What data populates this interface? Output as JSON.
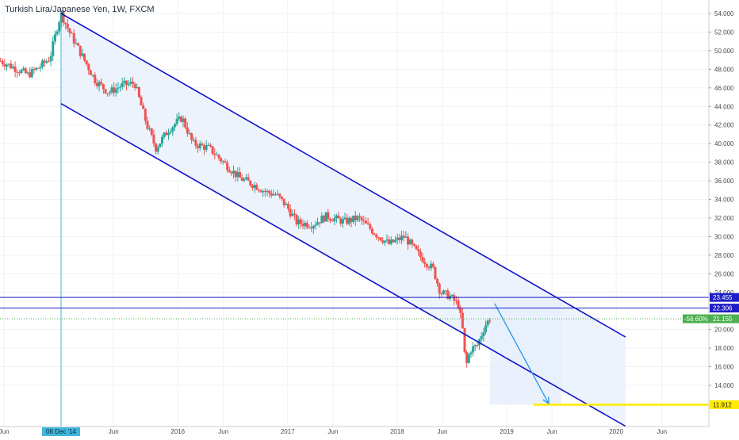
{
  "chart_data": {
    "type": "candlestick",
    "title": "Turkish Lira/Japanese Yen, 1W, FXCM",
    "x_ticks": [
      {
        "label": "Jun",
        "date": "2014-06-01"
      },
      {
        "label": "08 Dec '14",
        "date": "2014-12-08",
        "highlight": true
      },
      {
        "label": "Jun",
        "date": "2015-06-01"
      },
      {
        "label": "2016",
        "date": "2016-01-01"
      },
      {
        "label": "Jun",
        "date": "2016-06-01"
      },
      {
        "label": "2017",
        "date": "2017-01-01"
      },
      {
        "label": "Jun",
        "date": "2017-06-01"
      },
      {
        "label": "2018",
        "date": "2018-01-01"
      },
      {
        "label": "Jun",
        "date": "2018-06-01"
      },
      {
        "label": "2019",
        "date": "2019-01-01"
      },
      {
        "label": "Jun",
        "date": "2019-06-01"
      },
      {
        "label": "2020",
        "date": "2020-01-01"
      },
      {
        "label": "Jun",
        "date": "2020-06-01"
      }
    ],
    "y_ticks": [
      "54.000",
      "52.000",
      "50.000",
      "48.000",
      "46.000",
      "44.000",
      "42.000",
      "40.000",
      "38.000",
      "36.000",
      "34.000",
      "32.000",
      "30.000",
      "28.000",
      "26.000",
      "24.000",
      "20.000",
      "18.000",
      "16.000",
      "14.000"
    ],
    "ylim": [
      11.0,
      55.4
    ],
    "price_path": [
      [
        "2014-05-20",
        48.9
      ],
      [
        "2014-07-15",
        48.0
      ],
      [
        "2014-08-20",
        47.4
      ],
      [
        "2014-09-25",
        48.2
      ],
      [
        "2014-11-01",
        49.2
      ],
      [
        "2014-11-25",
        52.5
      ],
      [
        "2014-12-08",
        54.0
      ],
      [
        "2015-01-05",
        52.0
      ],
      [
        "2015-02-20",
        49.2
      ],
      [
        "2015-04-01",
        46.8
      ],
      [
        "2015-05-15",
        45.5
      ],
      [
        "2015-07-01",
        46.3
      ],
      [
        "2015-08-10",
        46.5
      ],
      [
        "2015-09-20",
        42.0
      ],
      [
        "2015-10-20",
        39.5
      ],
      [
        "2015-12-01",
        41.5
      ],
      [
        "2016-01-15",
        42.8
      ],
      [
        "2016-02-20",
        40.0
      ],
      [
        "2016-04-15",
        39.5
      ],
      [
        "2016-06-01",
        38.0
      ],
      [
        "2016-07-25",
        36.3
      ],
      [
        "2016-09-15",
        35.5
      ],
      [
        "2016-10-20",
        34.8
      ],
      [
        "2016-11-25",
        34.5
      ],
      [
        "2016-12-30",
        33.2
      ],
      [
        "2017-02-01",
        31.5
      ],
      [
        "2017-03-25",
        31.3
      ],
      [
        "2017-05-10",
        32.2
      ],
      [
        "2017-07-10",
        31.6
      ],
      [
        "2017-08-25",
        32.0
      ],
      [
        "2017-10-25",
        30.2
      ],
      [
        "2017-12-05",
        29.2
      ],
      [
        "2018-01-25",
        30.0
      ],
      [
        "2018-03-15",
        28.0
      ],
      [
        "2018-05-01",
        26.5
      ],
      [
        "2018-05-25",
        24.0
      ],
      [
        "2018-06-25",
        23.6
      ],
      [
        "2018-07-25",
        22.6
      ],
      [
        "2018-08-10",
        19.4
      ],
      [
        "2018-08-17",
        15.8
      ],
      [
        "2018-09-01",
        17.8
      ],
      [
        "2018-09-25",
        18.3
      ],
      [
        "2018-10-20",
        20.4
      ],
      [
        "2018-11-06",
        21.16
      ]
    ],
    "channel": {
      "upper": [
        [
          "2014-12-08",
          54.0
        ],
        [
          "2020-02-01",
          19.2
        ]
      ],
      "lower": [
        [
          "2014-12-08",
          44.3
        ],
        [
          "2020-02-01",
          9.6
        ]
      ]
    },
    "forecast_arrow": [
      [
        "2018-11-06",
        22.8
      ],
      [
        "2019-06-01",
        12.0
      ]
    ],
    "horizontal_levels": [
      {
        "value": 23.455,
        "label": "23.455",
        "color": "#1e1ec8"
      },
      {
        "value": 22.306,
        "label": "22.306",
        "color": "#1e1ec8"
      }
    ],
    "target": {
      "value": 11.912,
      "label": "11.912",
      "color": "#ffeb00",
      "start": "2019-04-01"
    },
    "current": {
      "value": 21.155,
      "label": "21.155",
      "change_label": "-56.60%",
      "color": "#4caf50"
    },
    "colors": {
      "up": "#26a69a",
      "down": "#ef5350",
      "channel": "#1414c8",
      "channel_fill": "#eaf2fd",
      "forecast": "#2196f3",
      "highlight": "#3fb6dc"
    }
  }
}
